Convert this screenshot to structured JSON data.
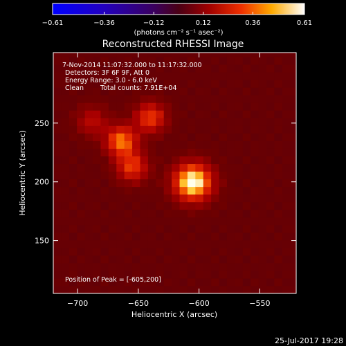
{
  "chart_data": {
    "type": "heatmap",
    "title": "Reconstructed RHESSI Image",
    "xlabel": "Heliocentric X (arcsec)",
    "ylabel": "Heliocentric Y (arcsec)",
    "xlim": [
      -720,
      -520
    ],
    "ylim": [
      105,
      310
    ],
    "xticks": [
      -700,
      -650,
      -600,
      -550
    ],
    "yticks": [
      150,
      200,
      250
    ],
    "xtick_labels": [
      "−700",
      "−650",
      "−600",
      "−550"
    ],
    "ytick_labels": [
      "150",
      "200",
      "250"
    ],
    "colorbar": {
      "min": -0.61,
      "max": 0.61,
      "ticks": [
        -0.61,
        -0.36,
        -0.12,
        0.12,
        0.36,
        0.61
      ],
      "tick_labels": [
        "−0.61",
        "−0.36",
        "−0.12",
        "0.12",
        "0.36",
        "0.61"
      ],
      "units_text": "(photons cm⁻² s⁻¹ asec⁻²)"
    },
    "annotations": {
      "time_range": "7-Nov-2014 11:07:32.000 to 11:17:32.000",
      "detectors": "Detectors: 3F 6F 9F, Att 0",
      "energy_range": "Energy Range: 3.0 - 6.0 keV",
      "algorithm": "Clean",
      "total_counts": "Total counts: 7.91E+04",
      "peak_position": "Position of Peak = [-605,200]"
    },
    "sources": [
      {
        "x": -605,
        "y": 200,
        "level": 0.61
      },
      {
        "x": -664,
        "y": 235,
        "level": 0.42
      },
      {
        "x": -640,
        "y": 255,
        "level": 0.34
      },
      {
        "x": -655,
        "y": 213,
        "level": 0.33
      },
      {
        "x": -688,
        "y": 252,
        "level": 0.2
      }
    ]
  },
  "footer": {
    "timestamp": "25-Jul-2017 19:28"
  }
}
